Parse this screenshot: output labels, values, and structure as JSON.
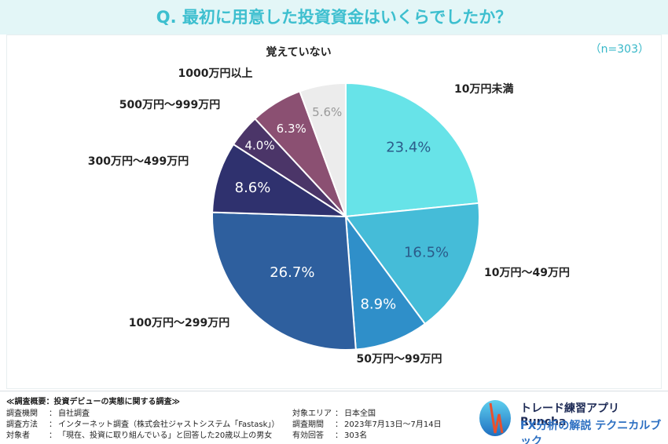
{
  "question": "Q. 最初に用意した投資資金はいくらでしたか？",
  "sample_size": "（n=303）",
  "chart_data": {
    "type": "pie",
    "title": "Q. 最初に用意した投資資金はいくらでしたか？",
    "categories": [
      "10万円未満",
      "10万円～49万円",
      "50万円～99万円",
      "100万円～299万円",
      "300万円～499万円",
      "500万円～999万円",
      "1000万円以上",
      "覚えていない"
    ],
    "values": [
      23.4,
      16.5,
      8.9,
      26.7,
      8.6,
      4.0,
      6.3,
      5.6
    ],
    "value_labels": [
      "23.4%",
      "16.5%",
      "8.9%",
      "26.7%",
      "8.6%",
      "4.0%",
      "6.3%",
      "5.6%"
    ],
    "colors": [
      "#67e3e8",
      "#45bcd8",
      "#2f8fc9",
      "#2e5f9e",
      "#2f316e",
      "#4b3568",
      "#8b5072",
      "#ececec"
    ],
    "value_label_colors": [
      "#2b5b8a",
      "#2b5b8a",
      "#ffffff",
      "#ffffff",
      "#ffffff",
      "#ffffff",
      "#ffffff",
      "#9a9a9a"
    ],
    "start": "12 o'clock",
    "direction": "clockwise"
  },
  "footer": {
    "heading": "≪調査概要：投資デビューの実態に関する調査≫",
    "rows_left": [
      {
        "key": "調査機関",
        "value": "自社調査"
      },
      {
        "key": "調査方法",
        "value": "インターネット調査（株式会社ジャストシステム「Fastask」）"
      },
      {
        "key": "対象者",
        "value": "「現在、投資に取り組んでいる」と回答した20歳以上の男女"
      }
    ],
    "rows_right": [
      {
        "key": "対象エリア",
        "value": "日本全国"
      },
      {
        "key": "調査期間",
        "value": "2023年7月13日～7月14日"
      },
      {
        "key": "有効回答",
        "value": "303名"
      }
    ]
  },
  "brand": {
    "line1": "トレード練習アプリ Runcha",
    "line2": "FX分析の解説 テクニカルブック"
  }
}
